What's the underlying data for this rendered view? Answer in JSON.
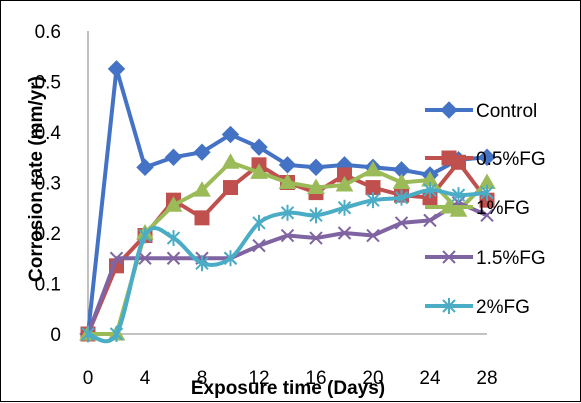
{
  "chart_data": {
    "type": "line",
    "title": "",
    "xlabel": "Exposure time (Days)",
    "ylabel": "Corrosion rate (mm/yr)",
    "xlim": [
      0,
      28
    ],
    "ylim": [
      0,
      0.6
    ],
    "xticks": [
      0,
      4,
      8,
      12,
      16,
      20,
      24,
      28
    ],
    "yticks": [
      0,
      0.1,
      0.2,
      0.3,
      0.4,
      0.5,
      0.6
    ],
    "ytick_labels": [
      "0",
      "0.1",
      "0.2",
      "0.3",
      "0.4",
      "0.5",
      "0.6"
    ],
    "grid": false,
    "legend": "right",
    "series": [
      {
        "name": "Control",
        "color": "#4472C4",
        "marker": "diamond",
        "smooth": false,
        "x": [
          0,
          2,
          4,
          6,
          8,
          10,
          12,
          14,
          16,
          18,
          20,
          22,
          24,
          26,
          28
        ],
        "y": [
          0,
          0.525,
          0.33,
          0.35,
          0.36,
          0.395,
          0.37,
          0.335,
          0.33,
          0.335,
          0.33,
          0.325,
          0.315,
          0.345,
          0.35
        ]
      },
      {
        "name": "0.5%FG",
        "color": "#C0504D",
        "marker": "square",
        "smooth": false,
        "x": [
          0,
          2,
          4,
          6,
          8,
          10,
          12,
          14,
          16,
          18,
          20,
          22,
          24,
          26,
          28
        ],
        "y": [
          0,
          0.135,
          0.195,
          0.265,
          0.23,
          0.29,
          0.335,
          0.3,
          0.28,
          0.315,
          0.29,
          0.275,
          0.27,
          0.34,
          0.265
        ]
      },
      {
        "name": "1%FG",
        "color": "#9BBB59",
        "marker": "triangle",
        "smooth": false,
        "x": [
          0,
          2,
          4,
          6,
          8,
          10,
          12,
          14,
          16,
          18,
          20,
          22,
          24,
          26,
          28
        ],
        "y": [
          0,
          0,
          0.2,
          0.255,
          0.285,
          0.34,
          0.32,
          0.3,
          0.29,
          0.295,
          0.325,
          0.3,
          0.305,
          0.245,
          0.3
        ]
      },
      {
        "name": "1.5%FG",
        "color": "#8064A2",
        "marker": "x",
        "smooth": false,
        "x": [
          0,
          2,
          4,
          6,
          8,
          10,
          12,
          14,
          16,
          18,
          20,
          22,
          24,
          26,
          28
        ],
        "y": [
          0,
          0.15,
          0.15,
          0.15,
          0.15,
          0.15,
          0.175,
          0.195,
          0.19,
          0.2,
          0.195,
          0.22,
          0.225,
          0.26,
          0.235
        ]
      },
      {
        "name": "2%FG",
        "color": "#4BACC6",
        "marker": "asterisk",
        "smooth": true,
        "x": [
          0,
          2,
          4,
          6,
          8,
          10,
          12,
          14,
          16,
          18,
          20,
          22,
          24,
          26,
          28
        ],
        "y": [
          0,
          0,
          0.195,
          0.19,
          0.14,
          0.15,
          0.22,
          0.24,
          0.235,
          0.25,
          0.265,
          0.27,
          0.285,
          0.275,
          0.28
        ]
      }
    ]
  }
}
